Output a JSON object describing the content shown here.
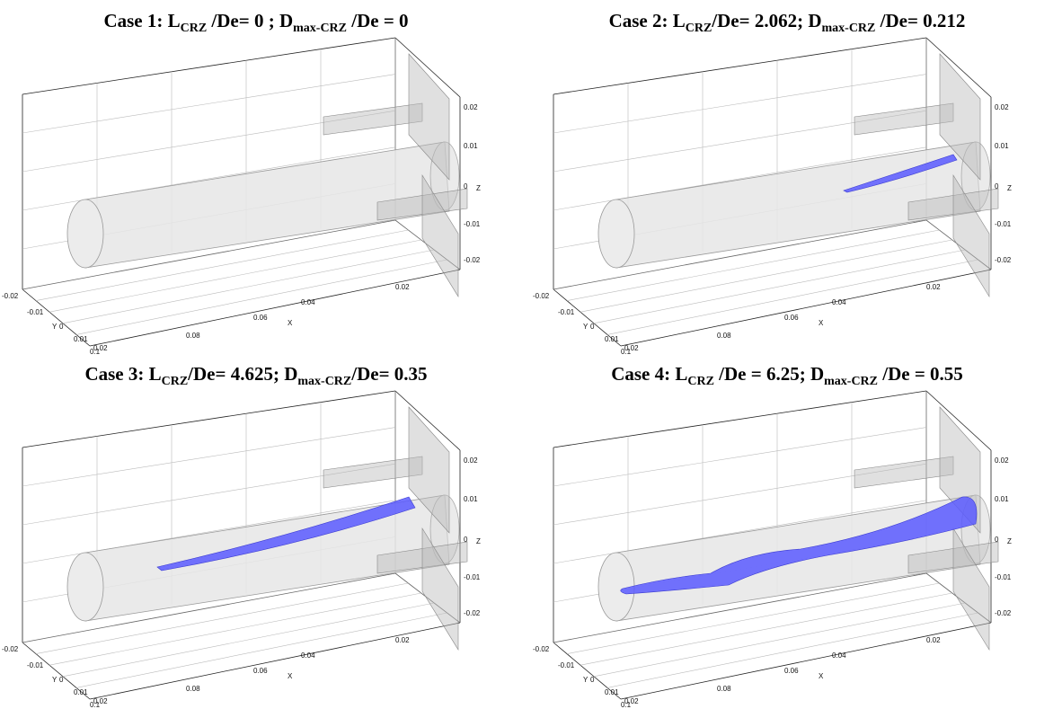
{
  "panels": [
    {
      "title": [
        "Case 1: L",
        "CRZ",
        " /De= 0 ; D",
        "max-CRZ",
        " /De = 0"
      ],
      "z_ticks": [
        "0.02",
        "0.01",
        "0",
        "-0.01",
        "-0.02"
      ],
      "z_label": "Z",
      "x_ticks": [
        "0.02",
        "0.04",
        "0.06",
        "0.08",
        "0.1"
      ],
      "x_label": "X",
      "y_ticks": [
        "-0.02",
        "-0.01",
        "0",
        "0.01",
        "0.02"
      ],
      "y_label": "Y"
    },
    {
      "title": [
        "Case 2: L",
        "CRZ",
        "/De= 2.062; D",
        "max-CRZ",
        " /De= 0.212"
      ],
      "z_ticks": [
        "0.02",
        "0.01",
        "0",
        "-0.01",
        "-0.02"
      ],
      "z_label": "Z",
      "x_ticks": [
        "0.02",
        "0.04",
        "0.06",
        "0.08",
        "0.1"
      ],
      "x_label": "X",
      "y_ticks": [
        "-0.02",
        "-0.01",
        "0",
        "0.01",
        "0.02"
      ],
      "y_label": "Y"
    },
    {
      "title": [
        "Case 3: L",
        "CRZ",
        "/De= 4.625; D",
        "max-CRZ",
        "/De= 0.35"
      ],
      "z_ticks": [
        "0.02",
        "0.01",
        "0",
        "-0.01",
        "-0.02"
      ],
      "z_label": "Z",
      "x_ticks": [
        "0.02",
        "0.04",
        "0.06",
        "0.08",
        "0.1"
      ],
      "x_label": "X",
      "y_ticks": [
        "-0.02",
        "-0.01",
        "0",
        "0.01",
        "0.02"
      ],
      "y_label": "Y"
    },
    {
      "title": [
        "Case 4: L",
        "CRZ",
        " /De = 6.25; D",
        "max-CRZ",
        " /De = 0.55"
      ],
      "z_ticks": [
        "0.02",
        "0.01",
        "0",
        "-0.01",
        "-0.02"
      ],
      "z_label": "Z",
      "x_ticks": [
        "0.02",
        "0.04",
        "0.06",
        "0.08",
        "0.1"
      ],
      "x_label": "X",
      "y_ticks": [
        "-0.02",
        "-0.01",
        "0",
        "0.01",
        "0.02"
      ],
      "y_label": "Y"
    }
  ]
}
